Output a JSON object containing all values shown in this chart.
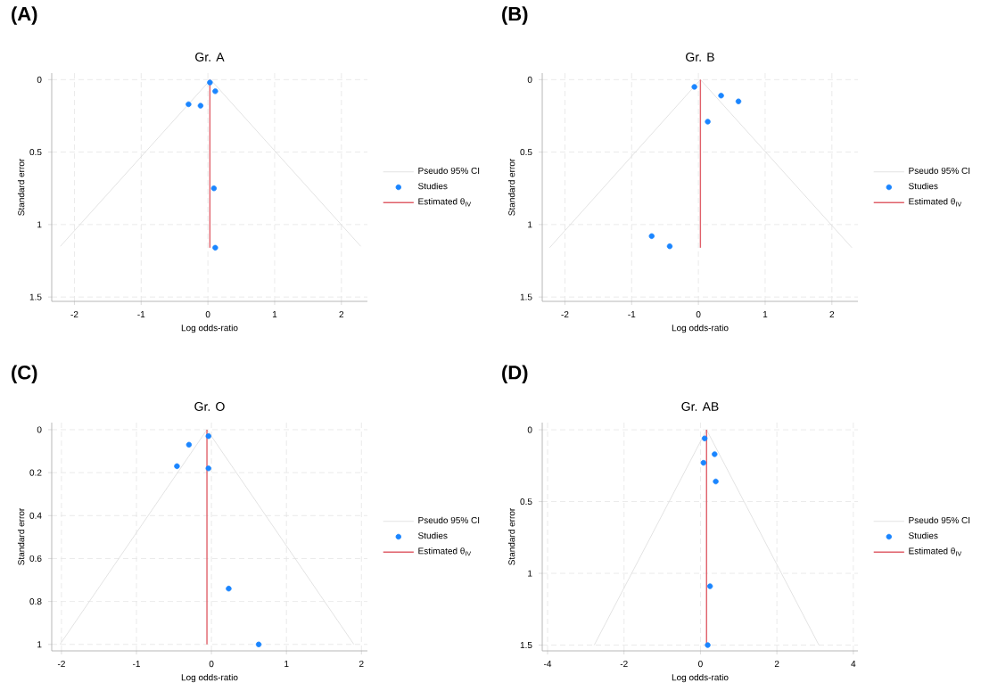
{
  "chart_data": [
    {
      "type": "line",
      "title": "Gr. A",
      "xlabel": "Log odds-ratio",
      "ylabel": "Standard error",
      "annotations": [
        "(A)"
      ],
      "xlim": [
        -2.34,
        2.39
      ],
      "ylim": [
        1.53,
        -0.045
      ],
      "xticks": [
        -2,
        -1,
        0,
        1,
        2
      ],
      "yticks": [
        0,
        0.5,
        1,
        1.5
      ],
      "grid": true,
      "legend": "right",
      "series": [
        {
          "name": "Pseudo 95% CI",
          "type": "line",
          "color": "#dcdcdc",
          "x": [
            -2.21,
            0.04,
            2.29
          ],
          "values": [
            1.15,
            0,
            1.15
          ]
        },
        {
          "name": "Studies",
          "type": "scatter",
          "marker": "circle",
          "color": "#1a85ff",
          "x": [
            0.03,
            0.11,
            -0.29,
            -0.11,
            0.09,
            0.11
          ],
          "values": [
            0.02,
            0.08,
            0.17,
            0.18,
            0.75,
            1.16
          ]
        },
        {
          "name": "Estimated θ$_{IV}$",
          "type": "line",
          "color": "#e0606a",
          "x": [
            0.03,
            0.03
          ],
          "values": [
            0,
            1.16
          ]
        }
      ]
    },
    {
      "type": "line",
      "title": "Gr. B",
      "xlabel": "Log odds-ratio",
      "ylabel": "Standard error",
      "annotations": [
        "(B)"
      ],
      "xlim": [
        -2.34,
        2.39
      ],
      "ylim": [
        1.53,
        -0.045
      ],
      "xticks": [
        -2,
        -1,
        0,
        1,
        2
      ],
      "yticks": [
        0,
        0.5,
        1,
        1.5
      ],
      "grid": true,
      "legend": "right",
      "series": [
        {
          "name": "Pseudo 95% CI",
          "type": "line",
          "color": "#dcdcdc",
          "x": [
            -2.23,
            0.03,
            2.3
          ],
          "values": [
            1.16,
            0,
            1.16
          ]
        },
        {
          "name": "Studies",
          "type": "scatter",
          "marker": "circle",
          "color": "#1a85ff",
          "x": [
            -0.06,
            0.34,
            0.6,
            0.14,
            -0.7,
            -0.43
          ],
          "values": [
            0.05,
            0.11,
            0.15,
            0.29,
            1.08,
            1.15
          ]
        },
        {
          "name": "Estimated θ$_{IV}$",
          "type": "line",
          "color": "#e0606a",
          "x": [
            0.03,
            0.03
          ],
          "values": [
            0,
            1.16
          ]
        }
      ]
    },
    {
      "type": "line",
      "title": "Gr. O",
      "xlabel": "Log odds-ratio",
      "ylabel": "Standard error",
      "annotations": [
        "(C)"
      ],
      "xlim": [
        -2.13,
        2.08
      ],
      "ylim": [
        1.03,
        -0.033
      ],
      "xticks": [
        -2,
        -1,
        0,
        1,
        2
      ],
      "yticks": [
        0,
        0.2,
        0.4,
        0.6,
        0.8,
        1
      ],
      "grid": true,
      "legend": "right",
      "series": [
        {
          "name": "Pseudo 95% CI",
          "type": "line",
          "color": "#dcdcdc",
          "x": [
            -2.02,
            -0.06,
            1.9
          ],
          "values": [
            1.0,
            0,
            1.0
          ]
        },
        {
          "name": "Studies",
          "type": "scatter",
          "marker": "circle",
          "color": "#1a85ff",
          "x": [
            -0.04,
            -0.3,
            -0.46,
            -0.04,
            0.23,
            0.63
          ],
          "values": [
            0.03,
            0.07,
            0.17,
            0.18,
            0.74,
            1.0
          ]
        },
        {
          "name": "Estimated θ$_{IV}$",
          "type": "line",
          "color": "#e0606a",
          "x": [
            -0.06,
            -0.06
          ],
          "values": [
            0,
            1.0
          ]
        }
      ]
    },
    {
      "type": "line",
      "title": "Gr. AB",
      "xlabel": "Log odds-ratio",
      "ylabel": "Standard error",
      "annotations": [
        "(D)"
      ],
      "xlim": [
        -4.14,
        4.12
      ],
      "ylim": [
        1.54,
        -0.05
      ],
      "xticks": [
        -4,
        -2,
        0,
        2,
        4
      ],
      "yticks": [
        0,
        0.5,
        1,
        1.5
      ],
      "grid": true,
      "legend": "right",
      "series": [
        {
          "name": "Pseudo 95% CI",
          "type": "line",
          "color": "#dcdcdc",
          "x": [
            -2.78,
            0.16,
            3.1
          ],
          "values": [
            1.5,
            0,
            1.5
          ]
        },
        {
          "name": "Studies",
          "type": "scatter",
          "marker": "circle",
          "color": "#1a85ff",
          "x": [
            0.11,
            0.37,
            0.08,
            0.4,
            0.25,
            0.19
          ],
          "values": [
            0.06,
            0.17,
            0.23,
            0.36,
            1.09,
            1.5
          ]
        },
        {
          "name": "Estimated θ$_{IV}$",
          "type": "line",
          "color": "#e0606a",
          "x": [
            0.16,
            0.16
          ],
          "values": [
            0,
            1.5
          ]
        }
      ]
    }
  ]
}
